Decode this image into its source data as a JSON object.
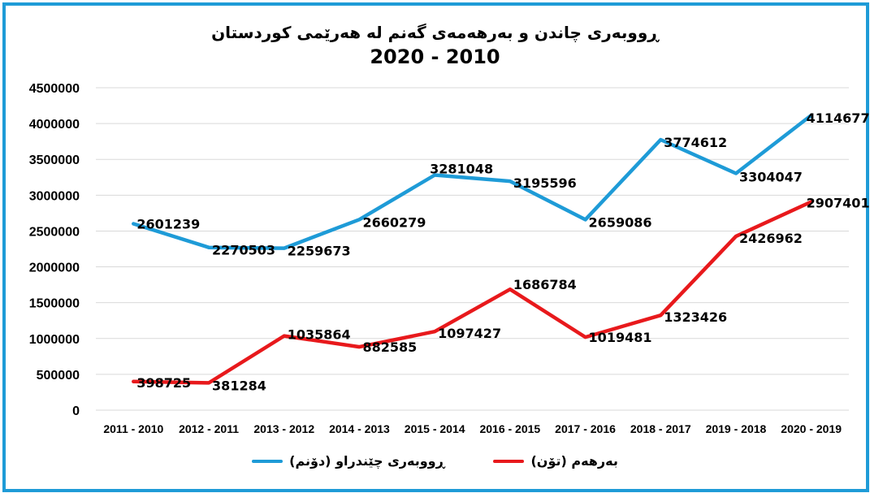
{
  "chart_data": {
    "type": "line",
    "title": "ڕووبەری چاندن و بەرهەمەی گەنم لە هەرێمی کوردستان",
    "subtitle": "2020 - 2010",
    "categories": [
      "2011 - 2010",
      "2012 - 2011",
      "2013 - 2012",
      "2014 - 2013",
      "2015 - 2014",
      "2016 - 2015",
      "2017 - 2016",
      "2018 - 2017",
      "2019 - 2018",
      "2020 - 2019"
    ],
    "ylim": [
      0,
      4500000
    ],
    "yticks": [
      0,
      500000,
      1000000,
      1500000,
      2000000,
      2500000,
      3000000,
      3500000,
      4000000,
      4500000
    ],
    "grid": true,
    "legend_position": "bottom",
    "series": [
      {
        "name": "ڕووبەری چێندراو (دۆنم)",
        "color": "#1e9bd7",
        "values": [
          2601239,
          2270503,
          2259673,
          2660279,
          3281048,
          3195596,
          2659086,
          3774612,
          3304047,
          4114677
        ]
      },
      {
        "name": "بەرهەم (تۆن)",
        "color": "#e8191c",
        "values": [
          398725,
          381284,
          1035864,
          882585,
          1097427,
          1686784,
          1019481,
          1323426,
          2426962,
          2907401
        ]
      }
    ]
  }
}
